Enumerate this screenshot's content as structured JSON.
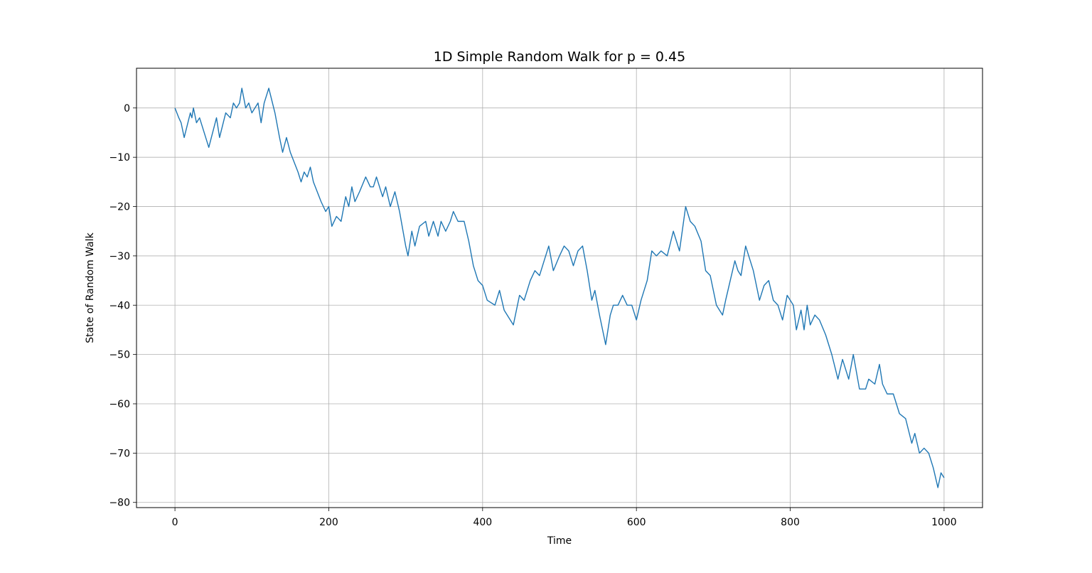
{
  "chart_data": {
    "type": "line",
    "title": "1D Simple Random Walk for p = 0.45",
    "x_label": "Time",
    "y_label": "State of Random Walk",
    "xlim": [
      -50,
      1050
    ],
    "ylim": [
      -81.05,
      8.05
    ],
    "xticks": [
      0,
      200,
      400,
      600,
      800,
      1000
    ],
    "yticks": [
      {
        "value": -80,
        "label": "−80"
      },
      {
        "value": -70,
        "label": "−70"
      },
      {
        "value": -60,
        "label": "−60"
      },
      {
        "value": -50,
        "label": "−50"
      },
      {
        "value": -40,
        "label": "−40"
      },
      {
        "value": -30,
        "label": "−30"
      },
      {
        "value": -20,
        "label": "−20"
      },
      {
        "value": -10,
        "label": "−10"
      },
      0
    ],
    "grid": true,
    "series": [
      {
        "color": "#1f77b4",
        "x": [
          0,
          5,
          8,
          12,
          20,
          22,
          24,
          28,
          32,
          36,
          44,
          54,
          58,
          66,
          72,
          76,
          80,
          84,
          87,
          92,
          96,
          100,
          108,
          112,
          116,
          122,
          130,
          136,
          140,
          145,
          150,
          160,
          164,
          168,
          172,
          176,
          180,
          190,
          196,
          200,
          204,
          210,
          216,
          222,
          226,
          230,
          234,
          240,
          248,
          254,
          258,
          262,
          270,
          274,
          280,
          286,
          292,
          300,
          303,
          308,
          312,
          318,
          326,
          330,
          336,
          342,
          346,
          352,
          358,
          362,
          368,
          376,
          382,
          388,
          394,
          400,
          406,
          416,
          422,
          428,
          436,
          440,
          448,
          454,
          462,
          468,
          474,
          480,
          486,
          492,
          500,
          506,
          512,
          518,
          524,
          530,
          536,
          542,
          546,
          552,
          560,
          566,
          570,
          576,
          582,
          588,
          594,
          600,
          606,
          614,
          620,
          626,
          632,
          640,
          648,
          656,
          664,
          670,
          676,
          684,
          690,
          696,
          704,
          708,
          712,
          716,
          722,
          728,
          732,
          736,
          742,
          748,
          752,
          760,
          766,
          772,
          778,
          784,
          790,
          796,
          804,
          808,
          814,
          818,
          822,
          826,
          832,
          838,
          846,
          854,
          862,
          868,
          876,
          882,
          890,
          898,
          902,
          910,
          916,
          920,
          926,
          934,
          942,
          950,
          958,
          962,
          968,
          974,
          980,
          986,
          992,
          996,
          1000
        ],
        "values": [
          0,
          -2,
          -3,
          -6,
          -1,
          -2,
          0,
          -3,
          -2,
          -4,
          -8,
          -2,
          -6,
          -1,
          -2,
          1,
          0,
          1,
          4,
          0,
          1,
          -1,
          1,
          -3,
          1,
          4,
          -1,
          -6,
          -9,
          -6,
          -9,
          -13,
          -15,
          -13,
          -14,
          -12,
          -15,
          -19,
          -21,
          -20,
          -24,
          -22,
          -23,
          -18,
          -20,
          -16,
          -19,
          -17,
          -14,
          -16,
          -16,
          -14,
          -18,
          -16,
          -20,
          -17,
          -21,
          -28,
          -30,
          -25,
          -28,
          -24,
          -23,
          -26,
          -23,
          -26,
          -23,
          -25,
          -23,
          -21,
          -23,
          -23,
          -27,
          -32,
          -35,
          -36,
          -39,
          -40,
          -37,
          -41,
          -43,
          -44,
          -38,
          -39,
          -35,
          -33,
          -34,
          -31,
          -28,
          -33,
          -30,
          -28,
          -29,
          -32,
          -29,
          -28,
          -33,
          -39,
          -37,
          -42,
          -48,
          -42,
          -40,
          -40,
          -38,
          -40,
          -40,
          -43,
          -39,
          -35,
          -29,
          -30,
          -29,
          -30,
          -25,
          -29,
          -20,
          -23,
          -24,
          -27,
          -33,
          -34,
          -40,
          -41,
          -42,
          -39,
          -35,
          -31,
          -33,
          -34,
          -28,
          -31,
          -33,
          -39,
          -36,
          -35,
          -39,
          -40,
          -43,
          -38,
          -40,
          -45,
          -41,
          -45,
          -40,
          -44,
          -42,
          -43,
          -46,
          -50,
          -55,
          -51,
          -55,
          -50,
          -57,
          -57,
          -55,
          -56,
          -52,
          -56,
          -58,
          -58,
          -62,
          -63,
          -68,
          -66,
          -70,
          -69,
          -70,
          -73,
          -77,
          -74,
          -75
        ]
      }
    ]
  }
}
